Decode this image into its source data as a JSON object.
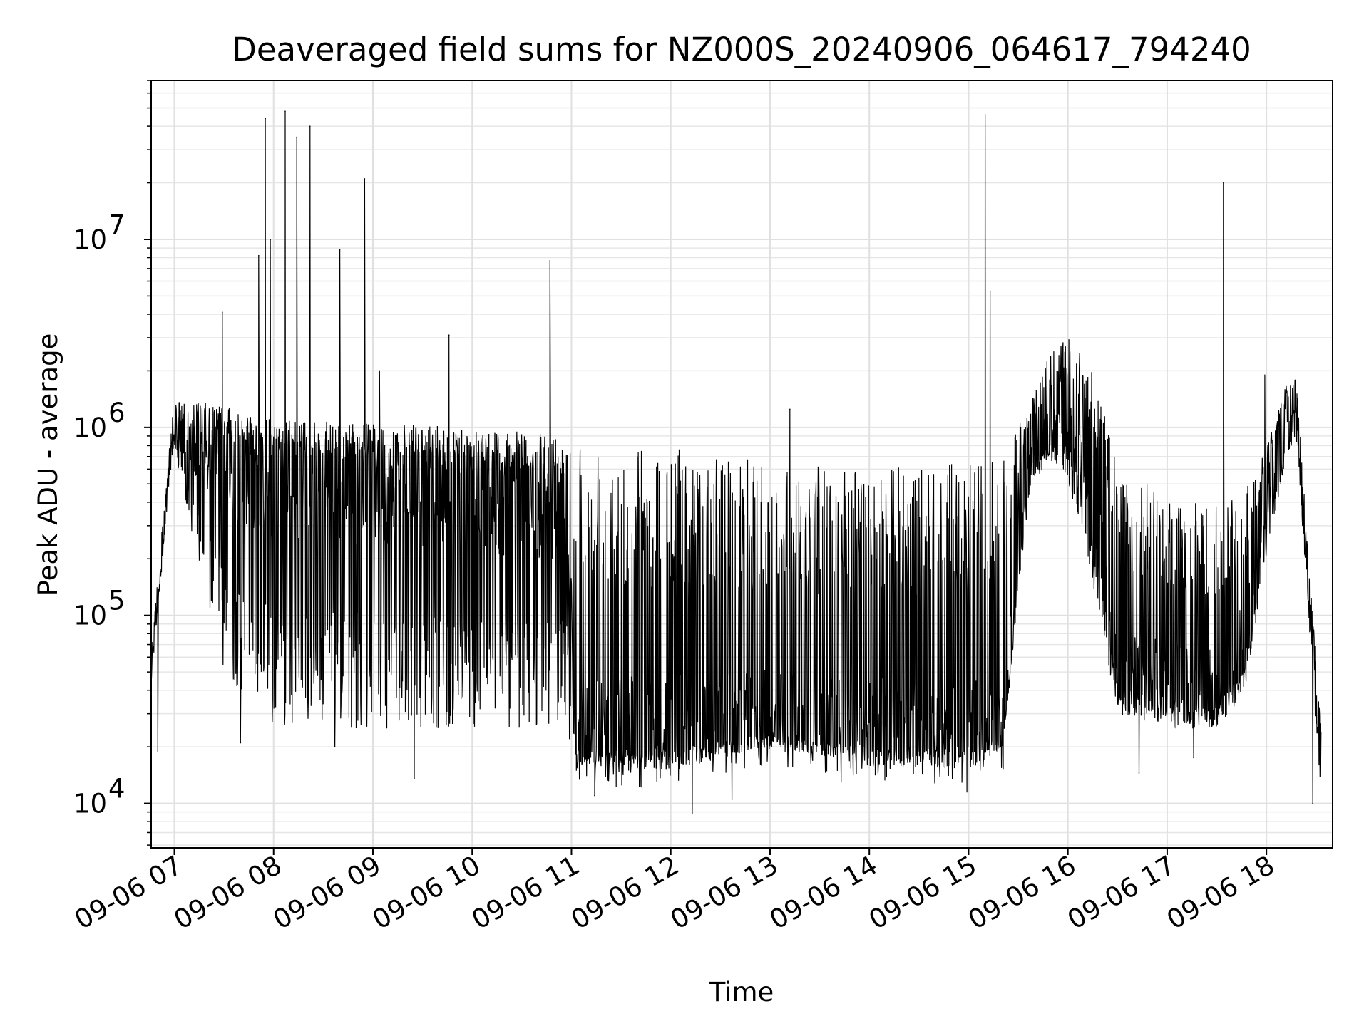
{
  "chart_data": {
    "type": "line",
    "title": "Deaveraged field sums for NZ000S_20240906_064617_794240",
    "xlabel": "Time",
    "ylabel": "Peak ADU - average",
    "y_scale": "log",
    "ylim": [
      5800,
      70000000
    ],
    "xlim": [
      "09-06 06:46",
      "09-06 18:40"
    ],
    "grid": true,
    "line_color": "#000000",
    "x_ticks": [
      "09-06 07",
      "09-06 08",
      "09-06 09",
      "09-06 10",
      "09-06 11",
      "09-06 12",
      "09-06 13",
      "09-06 14",
      "09-06 15",
      "09-06 16",
      "09-06 17",
      "09-06 18"
    ],
    "y_ticks": [
      {
        "value": 10000,
        "base": "10",
        "exp": "4"
      },
      {
        "value": 100000,
        "base": "10",
        "exp": "5"
      },
      {
        "value": 1000000,
        "base": "10",
        "exp": "6"
      },
      {
        "value": 10000000,
        "base": "10",
        "exp": "7"
      }
    ],
    "envelope_hours": [
      6.77,
      6.9,
      6.95,
      7.0,
      7.1,
      7.5,
      8.0,
      9.0,
      10.0,
      10.95,
      11.05,
      12.0,
      13.0,
      14.0,
      15.0,
      15.35,
      15.6,
      15.8,
      16.0,
      16.25,
      16.5,
      17.0,
      17.5,
      17.8,
      18.0,
      18.2,
      18.3,
      18.55
    ],
    "envelope_upper": [
      70000,
      400000,
      800000,
      1400000,
      1400000,
      1300000,
      1100000,
      1050000,
      1000000,
      900000,
      900000,
      800000,
      650000,
      600000,
      650000,
      700000,
      1300000,
      2500000,
      3000000,
      2000000,
      700000,
      400000,
      400000,
      500000,
      800000,
      1700000,
      1900000,
      25000
    ],
    "envelope_lower": [
      45000,
      250000,
      500000,
      800000,
      400000,
      50000,
      25000,
      25000,
      25000,
      25000,
      16000,
      15000,
      20000,
      16000,
      15000,
      20000,
      400000,
      700000,
      500000,
      150000,
      30000,
      25000,
      25000,
      40000,
      200000,
      700000,
      900000,
      10000
    ],
    "envelope_baseline": [
      55000,
      300000,
      600000,
      1000000,
      700000,
      600000,
      500000,
      450000,
      400000,
      350000,
      25000,
      24000,
      28000,
      25000,
      24000,
      28000,
      600000,
      1000000,
      1000000,
      500000,
      50000,
      45000,
      40000,
      80000,
      400000,
      1000000,
      1200000,
      15000
    ],
    "spikes": [
      {
        "x": "07:29",
        "y": 4100000
      },
      {
        "x": "07:51",
        "y": 8200000
      },
      {
        "x": "07:55",
        "y": 44000000
      },
      {
        "x": "07:58",
        "y": 10000000
      },
      {
        "x": "08:07",
        "y": 48000000
      },
      {
        "x": "08:14",
        "y": 35000000
      },
      {
        "x": "08:22",
        "y": 40000000
      },
      {
        "x": "08:40",
        "y": 8800000
      },
      {
        "x": "08:55",
        "y": 21000000
      },
      {
        "x": "09:04",
        "y": 2000000
      },
      {
        "x": "09:46",
        "y": 3100000
      },
      {
        "x": "10:47",
        "y": 7700000
      },
      {
        "x": "13:12",
        "y": 1250000
      },
      {
        "x": "15:10",
        "y": 46000000
      },
      {
        "x": "15:13",
        "y": 5300000
      },
      {
        "x": "17:34",
        "y": 20000000
      },
      {
        "x": "17:59",
        "y": 1900000
      }
    ],
    "dips": [
      {
        "x": "06:50",
        "y": 19000
      },
      {
        "x": "07:40",
        "y": 21000
      },
      {
        "x": "08:37",
        "y": 20000
      },
      {
        "x": "09:25",
        "y": 13500
      },
      {
        "x": "11:14",
        "y": 11000
      },
      {
        "x": "12:13",
        "y": 8800
      },
      {
        "x": "12:37",
        "y": 10500
      },
      {
        "x": "13:43",
        "y": 13000
      },
      {
        "x": "14:59",
        "y": 11500
      },
      {
        "x": "16:43",
        "y": 14500
      },
      {
        "x": "17:16",
        "y": 17500
      },
      {
        "x": "18:28",
        "y": 10000
      }
    ]
  }
}
